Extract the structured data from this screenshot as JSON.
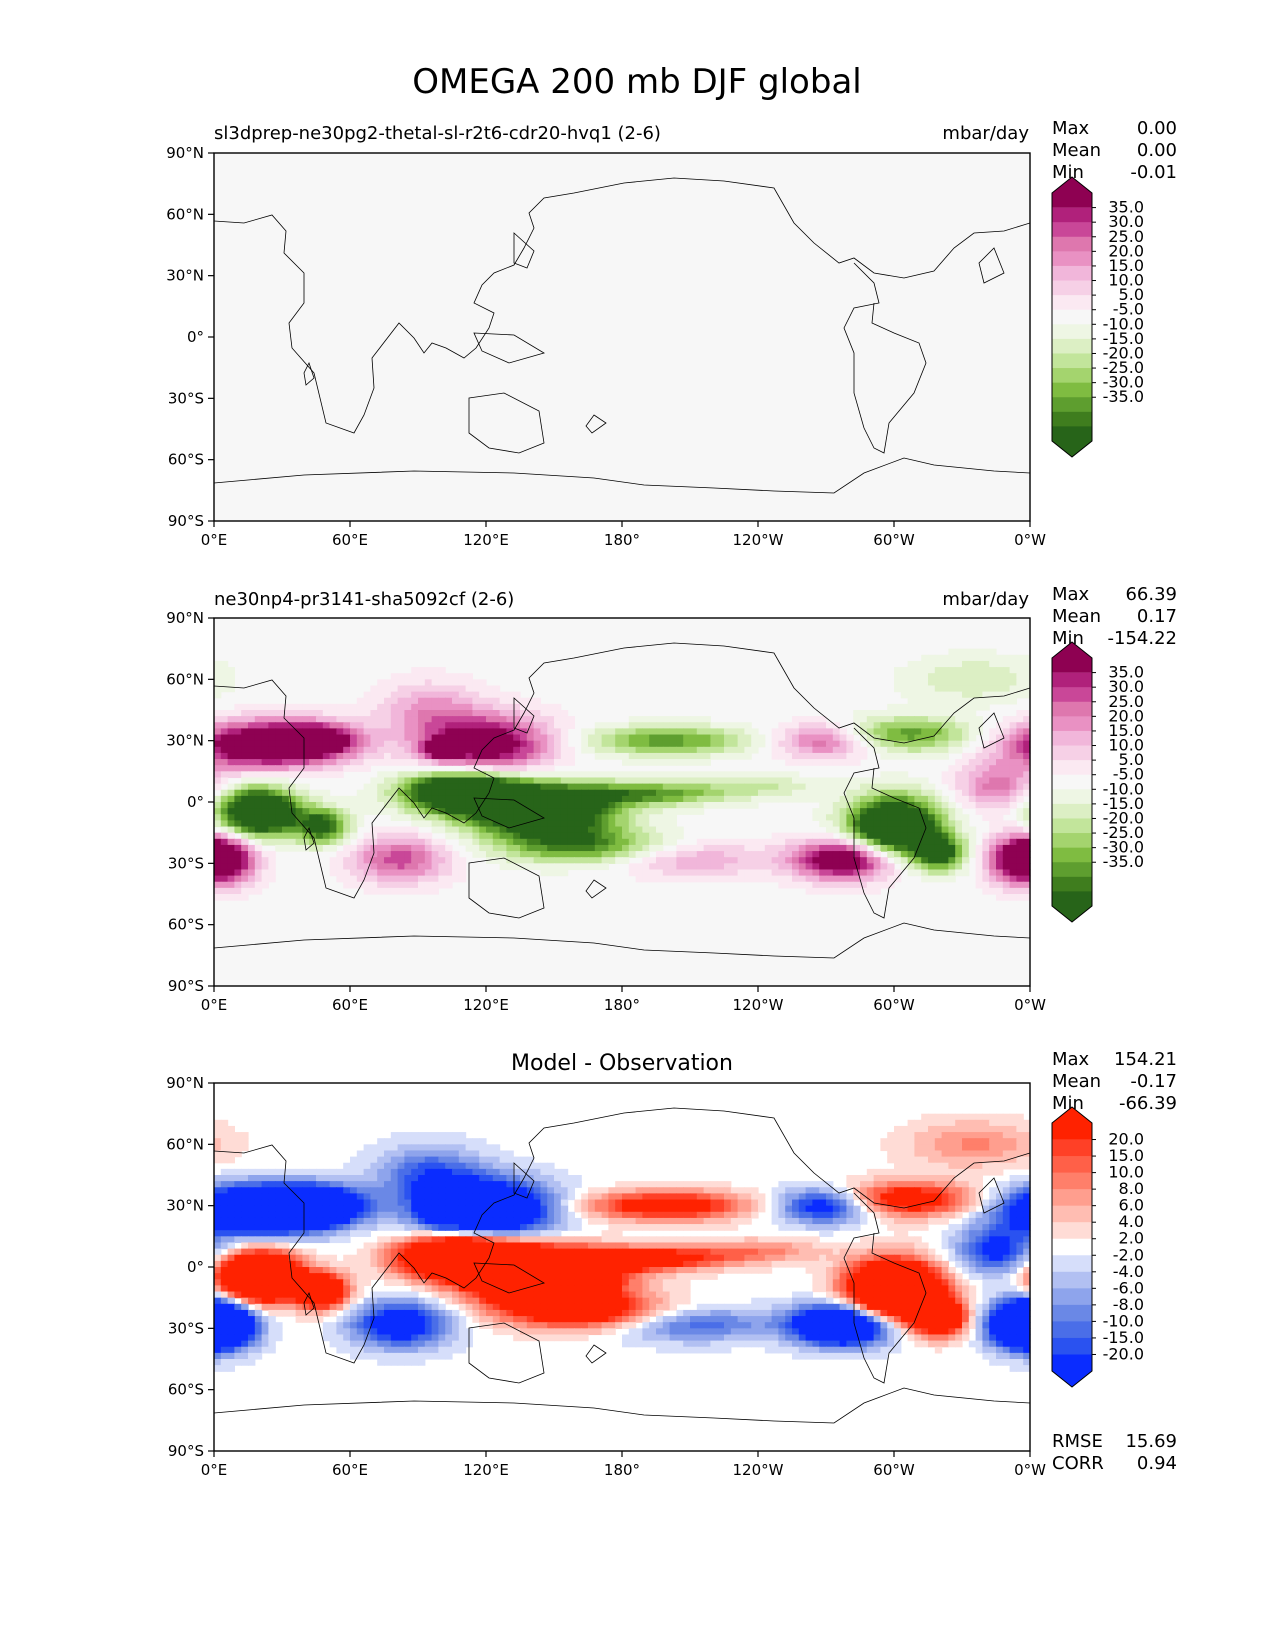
{
  "figure": {
    "title": "OMEGA 200 mb DJF global"
  },
  "axes": {
    "xticks": [
      "0°E",
      "60°E",
      "120°E",
      "180°",
      "120°W",
      "60°W",
      "0°W"
    ],
    "yticks": [
      "90°N",
      "60°N",
      "30°N",
      "0°",
      "30°S",
      "60°S",
      "90°S"
    ]
  },
  "colors": {
    "pink_green": [
      "#276419",
      "#3f7d1e",
      "#5e9e2f",
      "#7fbc41",
      "#a4d46e",
      "#c2e59b",
      "#dcefc4",
      "#eef6e4",
      "#f7f7f7",
      "#fbe9f2",
      "#f6d0e6",
      "#f1b6da",
      "#e991c3",
      "#de77ae",
      "#c94798",
      "#b0217b",
      "#8e0152"
    ],
    "blue_red": [
      "#0a2cff",
      "#2a52f0",
      "#4a6ee8",
      "#6a88e6",
      "#8ea4ec",
      "#b2c0f2",
      "#d6defa",
      "#ffffff",
      "#ffdcd6",
      "#ffbdb2",
      "#ff9e8e",
      "#ff7f6a",
      "#ff6048",
      "#ff4026",
      "#ff2200"
    ]
  },
  "chart_data": [
    {
      "type": "heatmap",
      "panel": "test",
      "title_left": "sl3dprep-ne30pg2-thetal-sl-r2t6-cdr20-hvq1 (2-6)",
      "title_right": "mbar/day",
      "stats": {
        "max_label": "Max",
        "max": "0.00",
        "mean_label": "Mean",
        "mean": "0.00",
        "min_label": "Min",
        "min": "-0.01"
      },
      "colorbar": {
        "levels": [
          "35.0",
          "30.0",
          "25.0",
          "20.0",
          "15.0",
          "10.0",
          "5.0",
          "-5.0",
          "-10.0",
          "-15.0",
          "-20.0",
          "-25.0",
          "-30.0",
          "-35.0"
        ],
        "colormap": "pink_green"
      },
      "field": "uniform",
      "xlim": [
        0,
        360
      ],
      "ylim": [
        -90,
        90
      ]
    },
    {
      "type": "heatmap",
      "panel": "reference",
      "title_left": "ne30np4-pr3141-sha5092cf (2-6)",
      "title_right": "mbar/day",
      "stats": {
        "max_label": "Max",
        "max": "66.39",
        "mean_label": "Mean",
        "mean": "0.17",
        "min_label": "Min",
        "min": "-154.22"
      },
      "colorbar": {
        "levels": [
          "35.0",
          "30.0",
          "25.0",
          "20.0",
          "15.0",
          "10.0",
          "5.0",
          "-5.0",
          "-10.0",
          "-15.0",
          "-20.0",
          "-25.0",
          "-30.0",
          "-35.0"
        ],
        "colormap": "pink_green"
      },
      "field": "anomaly",
      "sign": 1,
      "xlim": [
        0,
        360
      ],
      "ylim": [
        -90,
        90
      ]
    },
    {
      "type": "heatmap",
      "panel": "difference",
      "title_center": "Model - Observation",
      "stats": {
        "max_label": "Max",
        "max": "154.21",
        "mean_label": "Mean",
        "mean": "-0.17",
        "min_label": "Min",
        "min": "-66.39"
      },
      "colorbar": {
        "levels": [
          "20.0",
          "15.0",
          "10.0",
          "8.0",
          "6.0",
          "4.0",
          "2.0",
          "-2.0",
          "-4.0",
          "-6.0",
          "-8.0",
          "-10.0",
          "-15.0",
          "-20.0"
        ],
        "colormap": "blue_red"
      },
      "field": "anomaly",
      "sign": -1,
      "metrics": {
        "rmse_label": "RMSE",
        "rmse": "15.69",
        "corr_label": "CORR",
        "corr": "0.94"
      },
      "xlim": [
        0,
        360
      ],
      "ylim": [
        -90,
        90
      ]
    }
  ],
  "features": [
    {
      "lon": 20,
      "lat": 28,
      "sx": 22,
      "sy": 8,
      "a": 45
    },
    {
      "lon": 45,
      "lat": 30,
      "sx": 14,
      "sy": 6,
      "a": 35
    },
    {
      "lon": 120,
      "lat": 28,
      "sx": 20,
      "sy": 10,
      "a": 40
    },
    {
      "lon": 95,
      "lat": 45,
      "sx": 16,
      "sy": 10,
      "a": 15
    },
    {
      "lon": 100,
      "lat": 26,
      "sx": 5,
      "sy": 3,
      "a": 35
    },
    {
      "lon": 5,
      "lat": -28,
      "sx": 10,
      "sy": 8,
      "a": 35
    },
    {
      "lon": 82,
      "lat": -28,
      "sx": 15,
      "sy": 8,
      "a": 25
    },
    {
      "lon": 278,
      "lat": -28,
      "sx": 15,
      "sy": 7,
      "a": 45
    },
    {
      "lon": 355,
      "lat": -28,
      "sx": 10,
      "sy": 8,
      "a": 35
    },
    {
      "lon": 345,
      "lat": 8,
      "sx": 12,
      "sy": 8,
      "a": 20
    },
    {
      "lon": 210,
      "lat": -28,
      "sx": 25,
      "sy": 6,
      "a": 15
    },
    {
      "lon": 270,
      "lat": 30,
      "sx": 15,
      "sy": 6,
      "a": 25
    },
    {
      "lon": 20,
      "lat": -5,
      "sx": 12,
      "sy": 8,
      "a": -60
    },
    {
      "lon": 48,
      "lat": -12,
      "sx": 8,
      "sy": 6,
      "a": -35
    },
    {
      "lon": 110,
      "lat": 5,
      "sx": 18,
      "sy": 7,
      "a": -60
    },
    {
      "lon": 145,
      "lat": -5,
      "sx": 22,
      "sy": 9,
      "a": -55
    },
    {
      "lon": 190,
      "lat": 4,
      "sx": 25,
      "sy": 4,
      "a": -25
    },
    {
      "lon": 165,
      "lat": -22,
      "sx": 25,
      "sy": 6,
      "a": -25
    },
    {
      "lon": 300,
      "lat": -12,
      "sx": 14,
      "sy": 10,
      "a": -60
    },
    {
      "lon": 320,
      "lat": -25,
      "sx": 8,
      "sy": 6,
      "a": -35
    },
    {
      "lon": 200,
      "lat": 30,
      "sx": 25,
      "sy": 5,
      "a": -25
    },
    {
      "lon": 305,
      "lat": 33,
      "sx": 22,
      "sy": 6,
      "a": -25
    },
    {
      "lon": 335,
      "lat": 60,
      "sx": 20,
      "sy": 8,
      "a": -10
    },
    {
      "lon": 240,
      "lat": 8,
      "sx": 20,
      "sy": 4,
      "a": -10
    }
  ]
}
